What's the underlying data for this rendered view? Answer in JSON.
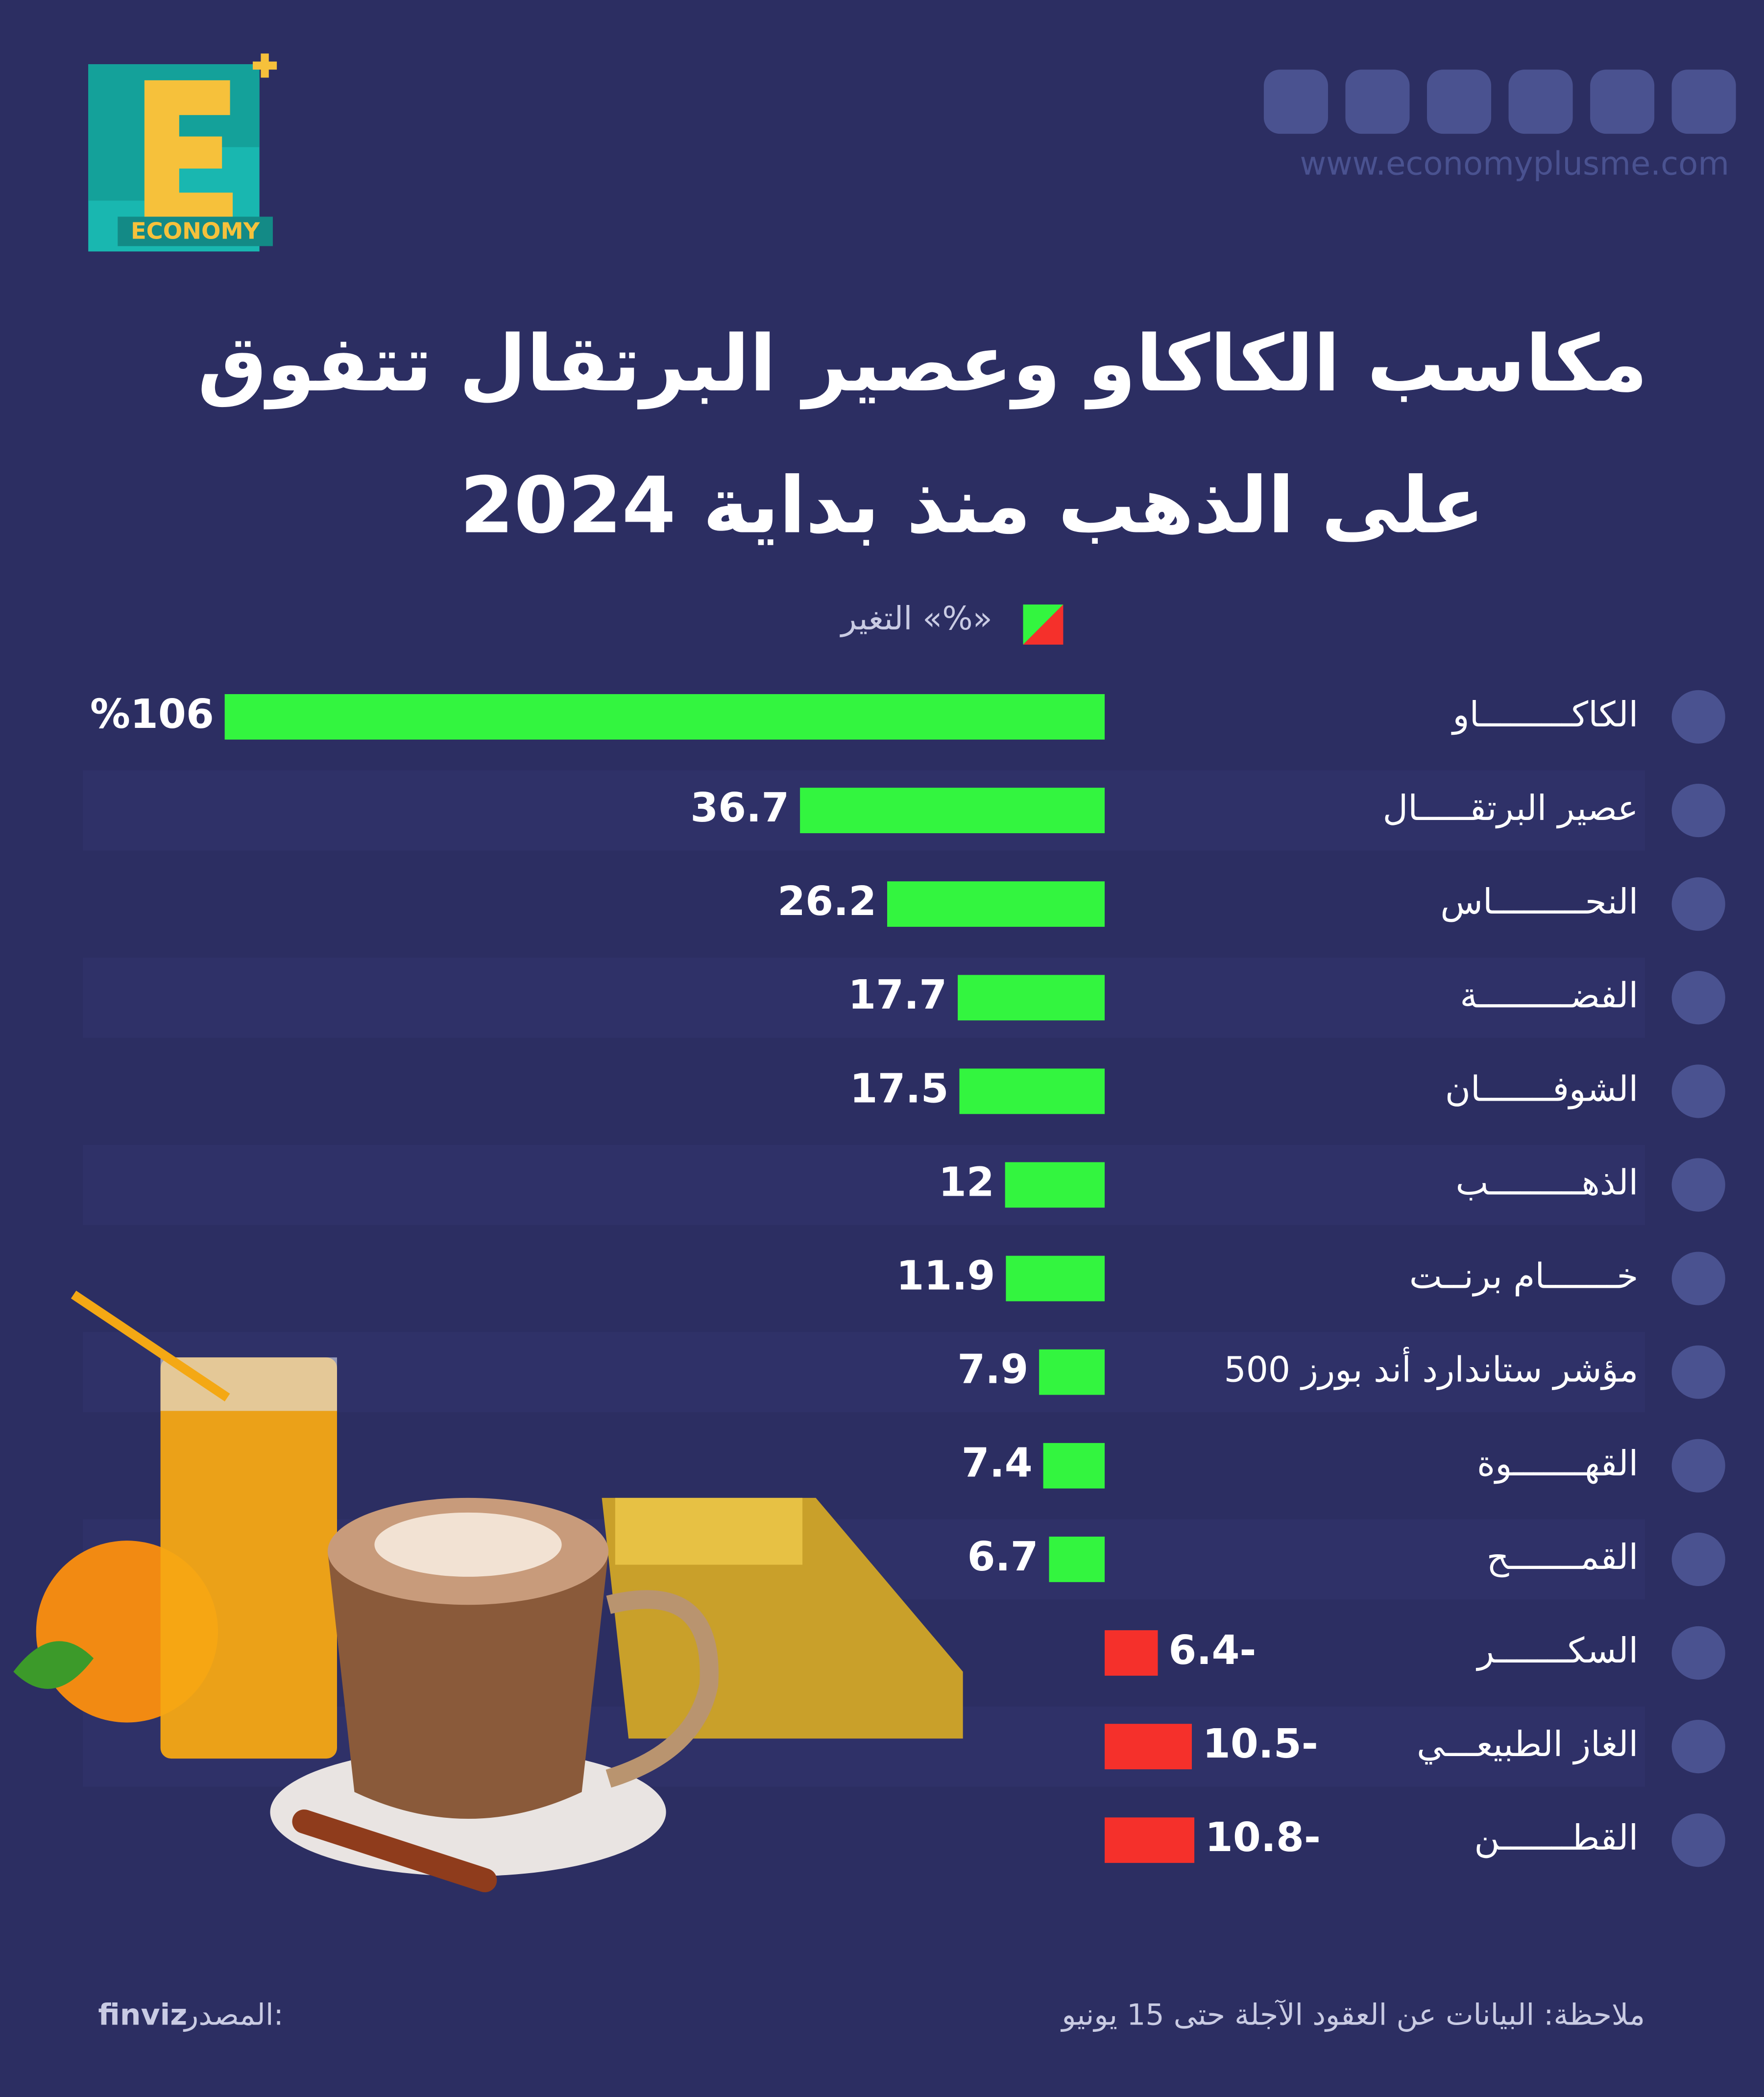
{
  "chart_data": {
    "type": "bar",
    "orientation": "horizontal",
    "title": [
      "مكاسب الكاكاو وعصير البرتقال تتفوق",
      "على الذهب منذ بداية 2024"
    ],
    "legend_label": "التغير «%»",
    "categories": [
      "الكاكـــــــــاو",
      "عصير البرتقـــــال",
      "النحـــــــــاس",
      "الفضـــــــــة",
      "الشوفـــــــان",
      "الذهـــــــــب",
      "خـــــــام برنــت",
      "مؤشر ستاندارد أند بورز 500",
      "القهـــــــوة",
      "القمـــــــح",
      "السكـــــــر",
      "الغاز الطبيعـــي",
      "القطـــــــن"
    ],
    "values": [
      106,
      36.7,
      26.2,
      17.7,
      17.5,
      12,
      11.9,
      7.9,
      7.4,
      6.7,
      -6.4,
      -10.5,
      -10.8
    ],
    "value_labels": [
      "%106",
      "36.7",
      "26.2",
      "17.7",
      "17.5",
      "12",
      "11.9",
      "7.9",
      "7.4",
      "6.7",
      "6.4-",
      "10.5-",
      "10.8-"
    ],
    "color": "#33f53f",
    "negative_color": "#f5302b",
    "note": "ملاحظة: البيانات عن العقود الآجلة حتى 15 يونيو",
    "source_label": "المصدر:",
    "source": "finviz",
    "website": "www.economyplusme.com",
    "brand": "ECONOMY"
  }
}
